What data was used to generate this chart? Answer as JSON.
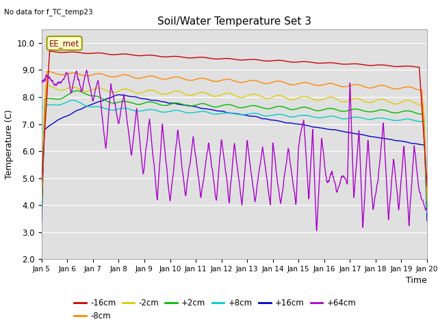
{
  "title": "Soil/Water Temperature Set 3",
  "xlabel": "Time",
  "ylabel": "Temperature (C)",
  "top_label": "No data for f_TC_temp23",
  "annotation_text": "EE_met",
  "ylim": [
    2.0,
    10.5
  ],
  "yticks": [
    2.0,
    3.0,
    4.0,
    5.0,
    6.0,
    7.0,
    8.0,
    9.0,
    10.0
  ],
  "xtick_labels": [
    "Jan 5",
    "Jan 6",
    "Jan 7",
    "Jan 8",
    "Jan 9",
    "Jan 10",
    "Jan 11",
    "Jan 12",
    "Jan 13",
    "Jan 14",
    "Jan 15",
    "Jan 16",
    "Jan 17",
    "Jan 18",
    "Jan 19",
    "Jan 20"
  ],
  "series_colors": {
    "-16cm": "#cc0000",
    "-8cm": "#ff8800",
    "-2cm": "#ddcc00",
    "+2cm": "#00bb00",
    "+8cm": "#00cccc",
    "+16cm": "#0000cc",
    "+64cm": "#aa00cc"
  },
  "bg_color": "#e0e0e0",
  "linewidth": 1.0,
  "figsize": [
    6.4,
    4.8
  ],
  "dpi": 100
}
